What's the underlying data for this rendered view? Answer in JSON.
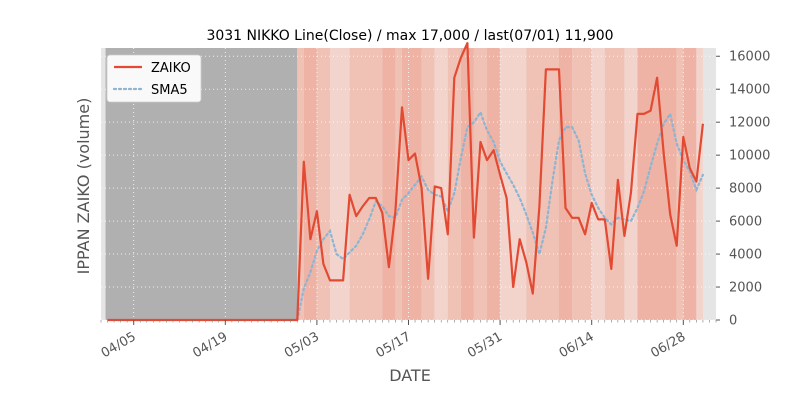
{
  "chart_data": {
    "type": "line",
    "title": "3031 NIKKO Line(Close) / max 17,000 / last(07/01) 11,900",
    "xlabel": "DATE",
    "ylabel": "IPPAN ZAIKO (volume)",
    "ylim": [
      0,
      16500
    ],
    "yticks": [
      0,
      2000,
      4000,
      6000,
      8000,
      10000,
      12000,
      14000,
      16000
    ],
    "ytick_labels": [
      "0",
      "2000",
      "4000",
      "6000",
      "8000",
      "10000",
      "12000",
      "14000",
      "16000"
    ],
    "xlim": [
      "2024-03-31",
      "2024-07-03"
    ],
    "xticks": [
      "2024-04-05",
      "2024-04-19",
      "2024-05-03",
      "2024-05-17",
      "2024-05-31",
      "2024-06-14",
      "2024-06-28"
    ],
    "xtick_labels": [
      "04/05",
      "04/19",
      "05/03",
      "05/17",
      "05/31",
      "06/14",
      "06/28"
    ],
    "legend_position": "top-left",
    "grid": true,
    "colors": {
      "zaiko": "#e24a33",
      "sma5": "#8eb4d3",
      "no_data_band": "#b0b0b0",
      "plot_background": "#e5e5e5",
      "band_light": "#f3d4cc",
      "band_mid": "#f0c2b6",
      "band_dark": "#eeb3a4"
    },
    "no_data_range": [
      "2024-04-01",
      "2024-04-30"
    ],
    "series": [
      {
        "name": "ZAIKO",
        "dates": [
          "2024-04-01",
          "2024-04-30",
          "2024-05-01",
          "2024-05-02",
          "2024-05-03",
          "2024-05-04",
          "2024-05-05",
          "2024-05-06",
          "2024-05-07",
          "2024-05-08",
          "2024-05-09",
          "2024-05-10",
          "2024-05-11",
          "2024-05-12",
          "2024-05-13",
          "2024-05-14",
          "2024-05-15",
          "2024-05-16",
          "2024-05-17",
          "2024-05-18",
          "2024-05-19",
          "2024-05-20",
          "2024-05-21",
          "2024-05-22",
          "2024-05-23",
          "2024-05-24",
          "2024-05-25",
          "2024-05-26",
          "2024-05-27",
          "2024-05-28",
          "2024-05-29",
          "2024-05-30",
          "2024-05-31",
          "2024-06-01",
          "2024-06-02",
          "2024-06-03",
          "2024-06-04",
          "2024-06-05",
          "2024-06-06",
          "2024-06-07",
          "2024-06-08",
          "2024-06-09",
          "2024-06-10",
          "2024-06-11",
          "2024-06-12",
          "2024-06-13",
          "2024-06-14",
          "2024-06-15",
          "2024-06-16",
          "2024-06-17",
          "2024-06-18",
          "2024-06-19",
          "2024-06-20",
          "2024-06-21",
          "2024-06-22",
          "2024-06-23",
          "2024-06-24",
          "2024-06-25",
          "2024-06-26",
          "2024-06-27",
          "2024-06-28",
          "2024-06-29",
          "2024-06-30",
          "2024-07-01"
        ],
        "values": [
          0,
          0,
          9600,
          4900,
          6600,
          3400,
          2400,
          2400,
          2400,
          7600,
          6300,
          6900,
          7400,
          7400,
          6500,
          3200,
          6600,
          12900,
          9700,
          10100,
          8000,
          2500,
          8100,
          8000,
          5200,
          14700,
          15900,
          16800,
          5000,
          10800,
          9700,
          10300,
          8800,
          7400,
          2000,
          4900,
          3500,
          1600,
          6900,
          15200,
          15200,
          15200,
          6800,
          6200,
          6200,
          5200,
          7100,
          6100,
          6100,
          3100,
          8500,
          5100,
          7700,
          12500,
          12500,
          12700,
          14700,
          10100,
          6400,
          4500,
          11100,
          9200,
          8400,
          11900
        ]
      },
      {
        "name": "SMA5",
        "dates": [
          "2024-04-30",
          "2024-05-01",
          "2024-05-02",
          "2024-05-03",
          "2024-05-04",
          "2024-05-05",
          "2024-05-06",
          "2024-05-07",
          "2024-05-08",
          "2024-05-09",
          "2024-05-10",
          "2024-05-11",
          "2024-05-12",
          "2024-05-13",
          "2024-05-14",
          "2024-05-15",
          "2024-05-16",
          "2024-05-17",
          "2024-05-18",
          "2024-05-19",
          "2024-05-20",
          "2024-05-21",
          "2024-05-22",
          "2024-05-23",
          "2024-05-24",
          "2024-05-25",
          "2024-05-26",
          "2024-05-27",
          "2024-05-28",
          "2024-05-29",
          "2024-05-30",
          "2024-05-31",
          "2024-06-01",
          "2024-06-02",
          "2024-06-03",
          "2024-06-04",
          "2024-06-05",
          "2024-06-06",
          "2024-06-07",
          "2024-06-08",
          "2024-06-09",
          "2024-06-10",
          "2024-06-11",
          "2024-06-12",
          "2024-06-13",
          "2024-06-14",
          "2024-06-15",
          "2024-06-16",
          "2024-06-17",
          "2024-06-18",
          "2024-06-19",
          "2024-06-20",
          "2024-06-21",
          "2024-06-22",
          "2024-06-23",
          "2024-06-24",
          "2024-06-25",
          "2024-06-26",
          "2024-06-27",
          "2024-06-28",
          "2024-06-29",
          "2024-06-30",
          "2024-07-01"
        ],
        "values": [
          0,
          1900,
          2900,
          4200,
          4900,
          5400,
          4000,
          3700,
          4100,
          4500,
          5200,
          6100,
          7200,
          6900,
          6300,
          6200,
          7300,
          7700,
          8200,
          8700,
          7900,
          7600,
          7500,
          6600,
          7700,
          9800,
          11700,
          12000,
          12600,
          11500,
          10800,
          9600,
          8900,
          8200,
          7400,
          6400,
          5300,
          4000,
          5600,
          8400,
          10900,
          11700,
          11700,
          10900,
          8900,
          7600,
          6800,
          6200,
          5800,
          6200,
          6100,
          6000,
          6800,
          7800,
          9300,
          10700,
          11900,
          12500,
          10700,
          9700,
          9000,
          7900,
          8800
        ]
      }
    ],
    "bands": [
      {
        "start": "2024-04-30",
        "end": "2024-05-01",
        "level": 1
      },
      {
        "start": "2024-05-01",
        "end": "2024-05-03",
        "level": 2
      },
      {
        "start": "2024-05-03",
        "end": "2024-05-05",
        "level": 1
      },
      {
        "start": "2024-05-05",
        "end": "2024-05-08",
        "level": 0
      },
      {
        "start": "2024-05-08",
        "end": "2024-05-13",
        "level": 1
      },
      {
        "start": "2024-05-13",
        "end": "2024-05-15",
        "level": 2
      },
      {
        "start": "2024-05-15",
        "end": "2024-05-16",
        "level": 1
      },
      {
        "start": "2024-05-16",
        "end": "2024-05-19",
        "level": 2
      },
      {
        "start": "2024-05-19",
        "end": "2024-05-21",
        "level": 1
      },
      {
        "start": "2024-05-21",
        "end": "2024-05-23",
        "level": 0
      },
      {
        "start": "2024-05-23",
        "end": "2024-05-25",
        "level": 1
      },
      {
        "start": "2024-05-25",
        "end": "2024-05-27",
        "level": 2
      },
      {
        "start": "2024-05-27",
        "end": "2024-05-29",
        "level": 1
      },
      {
        "start": "2024-05-29",
        "end": "2024-05-31",
        "level": 2
      },
      {
        "start": "2024-05-31",
        "end": "2024-06-04",
        "level": 0
      },
      {
        "start": "2024-06-04",
        "end": "2024-06-09",
        "level": 1
      },
      {
        "start": "2024-06-09",
        "end": "2024-06-11",
        "level": 2
      },
      {
        "start": "2024-06-11",
        "end": "2024-06-14",
        "level": 1
      },
      {
        "start": "2024-06-14",
        "end": "2024-06-16",
        "level": 0
      },
      {
        "start": "2024-06-16",
        "end": "2024-06-19",
        "level": 1
      },
      {
        "start": "2024-06-19",
        "end": "2024-06-21",
        "level": 0
      },
      {
        "start": "2024-06-21",
        "end": "2024-06-27",
        "level": 2
      },
      {
        "start": "2024-06-27",
        "end": "2024-06-28",
        "level": 1
      },
      {
        "start": "2024-06-28",
        "end": "2024-06-30",
        "level": 2
      },
      {
        "start": "2024-06-30",
        "end": "2024-07-01",
        "level": 0
      }
    ]
  }
}
